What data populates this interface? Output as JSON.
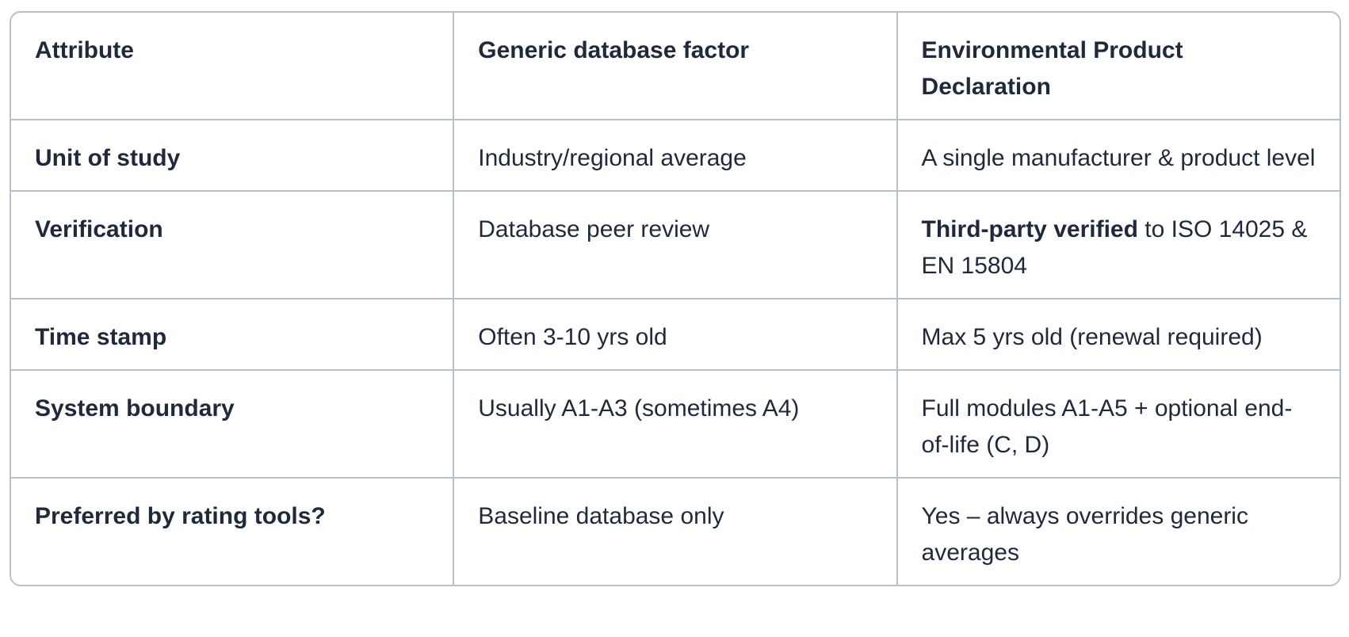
{
  "table": {
    "colors": {
      "text": "#1e2a3c",
      "border": "#b3c2cd",
      "background": "#ffffff"
    },
    "columns": [
      {
        "label": "Attribute"
      },
      {
        "label": "Generic database factor"
      },
      {
        "label": "Environmental Product Declaration"
      }
    ],
    "rows": [
      {
        "attribute": "Unit of study",
        "generic": "Industry/regional average",
        "epd": "A single manufacturer & product level"
      },
      {
        "attribute": "Verification",
        "generic": "Database peer review",
        "epd": {
          "bold": "Third-party verified",
          "rest": " to ISO 14025 & EN 15804"
        }
      },
      {
        "attribute": "Time stamp",
        "generic": "Often 3-10 yrs old",
        "epd": "Max 5 yrs old (renewal required)"
      },
      {
        "attribute": "System boundary",
        "generic": "Usually A1-A3 (sometimes A4)",
        "epd": "Full modules A1-A5 + optional end-of-life (C, D)"
      },
      {
        "attribute": "Preferred by rating tools?",
        "generic": "Baseline database only",
        "epd": "Yes – always overrides generic averages"
      }
    ]
  }
}
